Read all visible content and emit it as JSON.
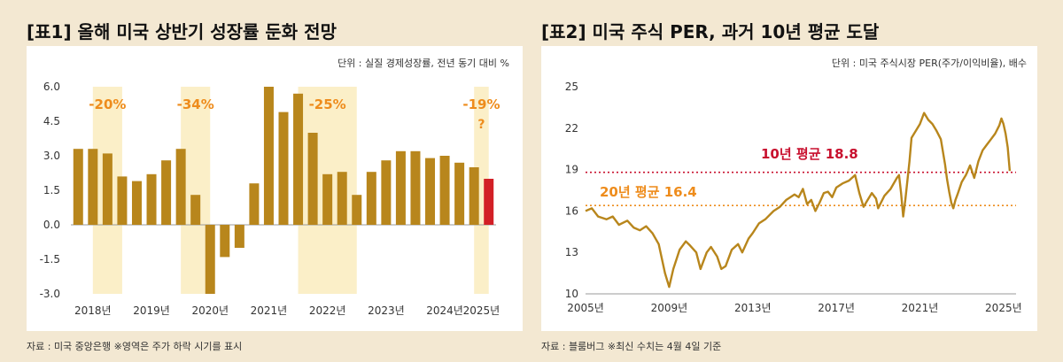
{
  "left": {
    "title": "[표1] 올해 미국 상반기 성장률 둔화 전망",
    "source": "자료 : 미국 중앙은행 ※영역은 주가 하락 시기를 표시",
    "chart_data": {
      "type": "bar",
      "unit_note": "단위 : 실질 경제성장률, 전년 동기 대비 %",
      "yticks": [
        "6.0",
        "4.5",
        "3.0",
        "1.5",
        "0.0",
        "-1.5",
        "-3.0"
      ],
      "ylim": [
        -3.0,
        6.0
      ],
      "xtick_labels": [
        "2018년",
        "2019년",
        "2020년",
        "2021년",
        "2022년",
        "2023년",
        "2024년",
        "2025년"
      ],
      "values": [
        3.3,
        3.3,
        3.1,
        2.1,
        1.9,
        2.2,
        2.8,
        3.3,
        1.3,
        -3.0,
        -1.4,
        -1.0,
        1.8,
        6.0,
        4.9,
        5.7,
        4.0,
        2.2,
        2.3,
        1.3,
        2.3,
        2.8,
        3.2,
        3.2,
        2.9,
        3.0,
        2.7,
        2.5,
        2.0
      ],
      "highlight_last": true,
      "shaded_periods": [
        {
          "label": "-20%",
          "from": 1.5,
          "to": 3.5
        },
        {
          "label": "-34%",
          "from": 7.5,
          "to": 9.5
        },
        {
          "label": "-25%",
          "from": 15.5,
          "to": 19.5
        },
        {
          "label": "-19%",
          "from": 27.5,
          "to": 28.5,
          "sublabel": "?"
        }
      ],
      "colors": {
        "bar": "#b8861c",
        "last_bar": "#d21f26",
        "shade": "#fbefc8",
        "label": "#ee8c1c"
      }
    }
  },
  "right": {
    "title": "[표2] 미국 주식 PER, 과거 10년 평균 도달",
    "source": "자료 : 블룸버그 ※최신 수치는 4월 4일 기준",
    "chart_data": {
      "type": "line",
      "unit_note": "단위 : 미국 주식시장 PER(주가/이익비율), 배수",
      "yticks": [
        "25",
        "22",
        "19",
        "16",
        "13",
        "10"
      ],
      "ylim": [
        10,
        25
      ],
      "xlim": [
        2005,
        2025.6
      ],
      "xtick_labels": [
        "2005년",
        "2009년",
        "2013년",
        "2017년",
        "2021년",
        "2025년"
      ],
      "x": [
        2005.0,
        2005.3,
        2005.6,
        2006.0,
        2006.3,
        2006.6,
        2007.0,
        2007.3,
        2007.6,
        2007.9,
        2008.2,
        2008.5,
        2008.8,
        2009.0,
        2009.2,
        2009.5,
        2009.8,
        2010.0,
        2010.3,
        2010.5,
        2010.8,
        2011.0,
        2011.3,
        2011.5,
        2011.7,
        2012.0,
        2012.3,
        2012.5,
        2012.8,
        2013.0,
        2013.3,
        2013.6,
        2014.0,
        2014.3,
        2014.6,
        2015.0,
        2015.2,
        2015.4,
        2015.6,
        2015.8,
        2016.0,
        2016.2,
        2016.4,
        2016.6,
        2016.8,
        2017.0,
        2017.3,
        2017.6,
        2017.9,
        2018.1,
        2018.3,
        2018.5,
        2018.7,
        2018.9,
        2019.0,
        2019.3,
        2019.6,
        2019.9,
        2020.0,
        2020.1,
        2020.2,
        2020.3,
        2020.5,
        2020.6,
        2020.8,
        2021.0,
        2021.2,
        2021.4,
        2021.6,
        2021.8,
        2022.0,
        2022.2,
        2022.3,
        2022.4,
        2022.5,
        2022.6,
        2022.7,
        2022.8,
        2023.0,
        2023.2,
        2023.4,
        2023.6,
        2023.8,
        2024.0,
        2024.2,
        2024.4,
        2024.6,
        2024.8,
        2024.9,
        2025.0,
        2025.1,
        2025.2,
        2025.3
      ],
      "y": [
        16.0,
        16.2,
        15.6,
        15.4,
        15.6,
        15.0,
        15.3,
        14.8,
        14.6,
        14.9,
        14.4,
        13.6,
        11.5,
        10.5,
        11.8,
        13.2,
        13.8,
        13.5,
        13.0,
        11.8,
        13.0,
        13.4,
        12.7,
        11.8,
        12.0,
        13.2,
        13.6,
        13.0,
        14.0,
        14.4,
        15.1,
        15.4,
        16.0,
        16.3,
        16.8,
        17.2,
        17.0,
        17.6,
        16.5,
        16.8,
        16.0,
        16.6,
        17.3,
        17.4,
        17.0,
        17.7,
        18.0,
        18.2,
        18.6,
        17.3,
        16.3,
        16.8,
        17.3,
        16.9,
        16.2,
        17.1,
        17.6,
        18.4,
        18.6,
        17.3,
        15.6,
        16.8,
        19.6,
        21.3,
        21.8,
        22.3,
        23.1,
        22.6,
        22.3,
        21.8,
        21.2,
        19.4,
        18.3,
        17.4,
        16.6,
        16.2,
        16.8,
        17.2,
        18.1,
        18.6,
        19.3,
        18.4,
        19.6,
        20.4,
        20.8,
        21.2,
        21.6,
        22.2,
        22.7,
        22.3,
        21.6,
        20.6,
        18.9
      ],
      "reference_lines": [
        {
          "label": "10년 평균 18.8",
          "value": 18.8,
          "color": "#c8102e"
        },
        {
          "label": "20년 평균 16.4",
          "value": 16.4,
          "color": "#ee8c1c"
        }
      ],
      "colors": {
        "line": "#b8861c",
        "label_orange": "#ee8c1c",
        "label_red": "#c8102e"
      }
    }
  }
}
